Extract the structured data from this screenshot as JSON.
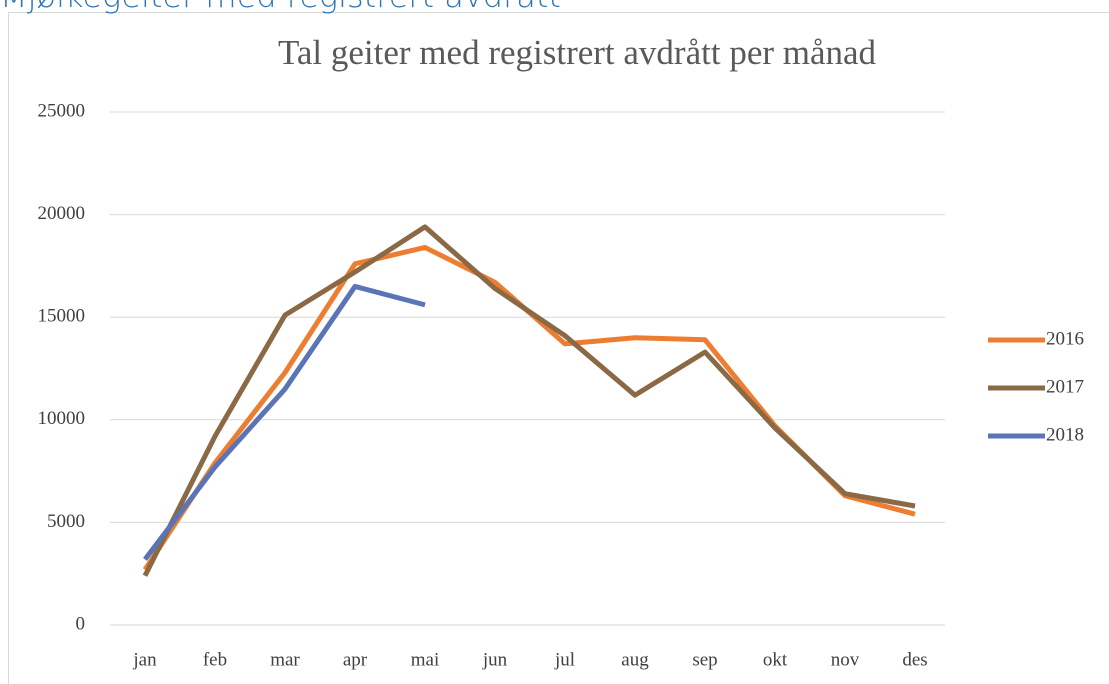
{
  "heading": "Mjølkegeiter med registrert avdrått",
  "chart_data": {
    "type": "line",
    "title": "Tal geiter med registrert avdrått per månad",
    "categories": [
      "jan",
      "feb",
      "mar",
      "apr",
      "mai",
      "jun",
      "jul",
      "aug",
      "sep",
      "okt",
      "nov",
      "des"
    ],
    "series": [
      {
        "name": "2016",
        "color": "#ed7d31",
        "values": [
          2700,
          7900,
          12300,
          17600,
          18400,
          16700,
          13700,
          14000,
          13900,
          9700,
          6300,
          5400
        ]
      },
      {
        "name": "2017",
        "color": "#8a6944",
        "values": [
          2400,
          9200,
          15100,
          17200,
          19400,
          16400,
          14100,
          11200,
          13300,
          9600,
          6400,
          5800
        ]
      },
      {
        "name": "2018",
        "color": "#5a74b6",
        "values": [
          3200,
          7700,
          11500,
          16500,
          15600,
          null,
          null,
          null,
          null,
          null,
          null,
          null
        ]
      }
    ],
    "ylim": [
      0,
      25000
    ],
    "yticks": [
      0,
      5000,
      10000,
      15000,
      20000,
      25000
    ],
    "grid": true,
    "legend": "right"
  }
}
